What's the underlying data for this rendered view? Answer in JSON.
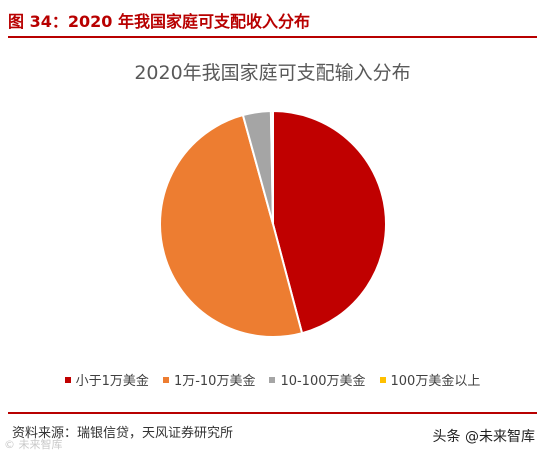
{
  "header": {
    "figure_title": "图 34：2020 年我国家庭可支配收入分布"
  },
  "chart_data": {
    "type": "pie",
    "title": "2020年我国家庭可支配输入分布",
    "categories": [
      "小于1万美金",
      "1万-10万美金",
      "10-100万美金",
      "100万美金以上"
    ],
    "values": [
      46,
      50,
      4,
      0.3
    ],
    "colors": [
      "#c00000",
      "#ed7d31",
      "#a5a5a5",
      "#ffc000"
    ],
    "legend_position": "bottom"
  },
  "footer": {
    "source": "资料来源：瑞银信贷，天风证券研究所",
    "watermark_right": "头条 @未来智库",
    "watermark_left": "© 未来智库"
  }
}
